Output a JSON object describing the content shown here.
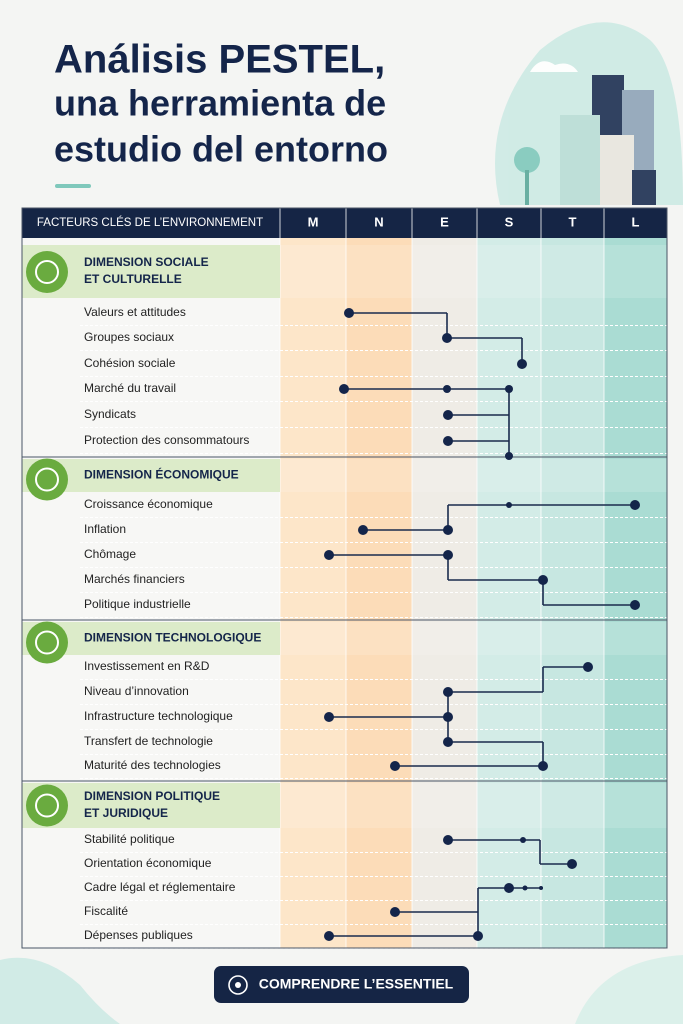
{
  "header": {
    "title_lines": [
      "Análisis PESTEL,",
      "una herramienta de",
      "estudio del entorno"
    ]
  },
  "table": {
    "header": [
      "FACTEURS CLÉS DE L’ENVIRONNEMENT",
      "M",
      "N",
      "E",
      "S",
      "T",
      "L"
    ],
    "sections": [
      {
        "title_lines": [
          "DIMENSION SOCIALE",
          "ET CULTURELLE"
        ],
        "items": [
          "Valeurs et attitudes",
          "Groupes sociaux",
          "Cohésion sociale",
          "Marché du travail",
          "Syndicats",
          "Protection des consommatours"
        ]
      },
      {
        "title_lines": [
          "DIMENSION ÉCONOMIQUE"
        ],
        "items": [
          "Croissance économique",
          "Inflation",
          "Chômage",
          "Marchés financiers",
          "Politique industrielle"
        ]
      },
      {
        "title_lines": [
          "DIMENSION TECHNOLOGIQUE"
        ],
        "items": [
          "Investissement en R&D",
          "Niveau d’innovation",
          "Infrastructure technologique",
          "Transfert de technologie",
          "Maturité des technologies"
        ]
      },
      {
        "title_lines": [
          "DIMENSION POLITIQUE",
          "ET JURIDIQUE"
        ],
        "items": [
          "Stabilité politique",
          "Orientation économique",
          "Cadre légal et réglementaire",
          "Fiscalité",
          "Dépenses publiques"
        ]
      }
    ]
  },
  "button": {
    "label": "COMPRENDRE L’ESSENTIEL"
  }
}
